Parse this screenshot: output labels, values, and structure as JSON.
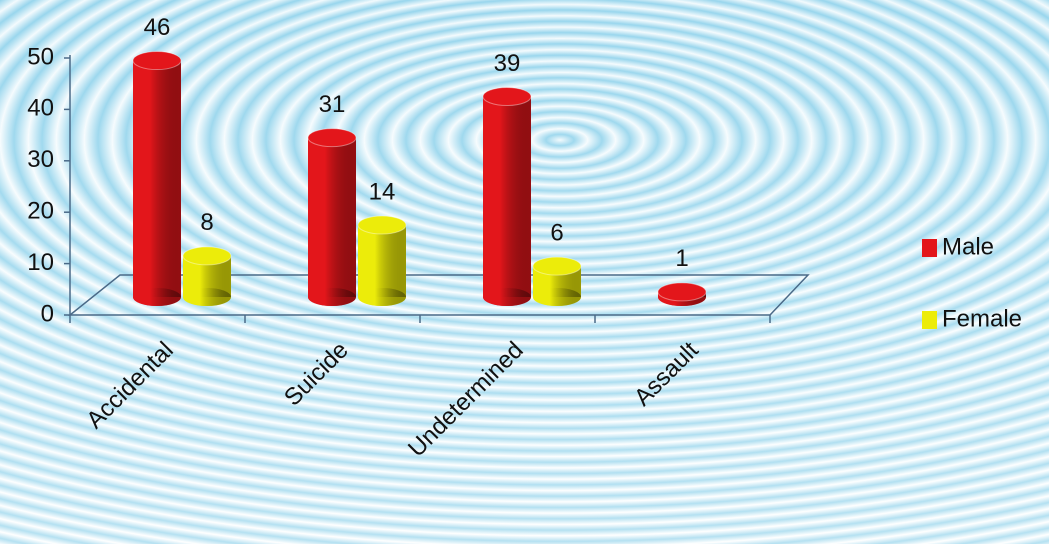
{
  "chart_data": {
    "type": "bar3d",
    "categories": [
      "Accidental",
      "Suicide",
      "Undetermined",
      "Assault"
    ],
    "series": [
      {
        "name": "Male",
        "color": "#e3161b",
        "values": [
          46,
          31,
          39,
          1
        ]
      },
      {
        "name": "Female",
        "color": "#ecec0a",
        "values": [
          8,
          14,
          6,
          null
        ]
      }
    ],
    "ylim": [
      0,
      50
    ],
    "yticks": [
      0,
      10,
      20,
      30,
      40,
      50
    ],
    "grid": false,
    "legend": "right",
    "data_labels": true
  }
}
